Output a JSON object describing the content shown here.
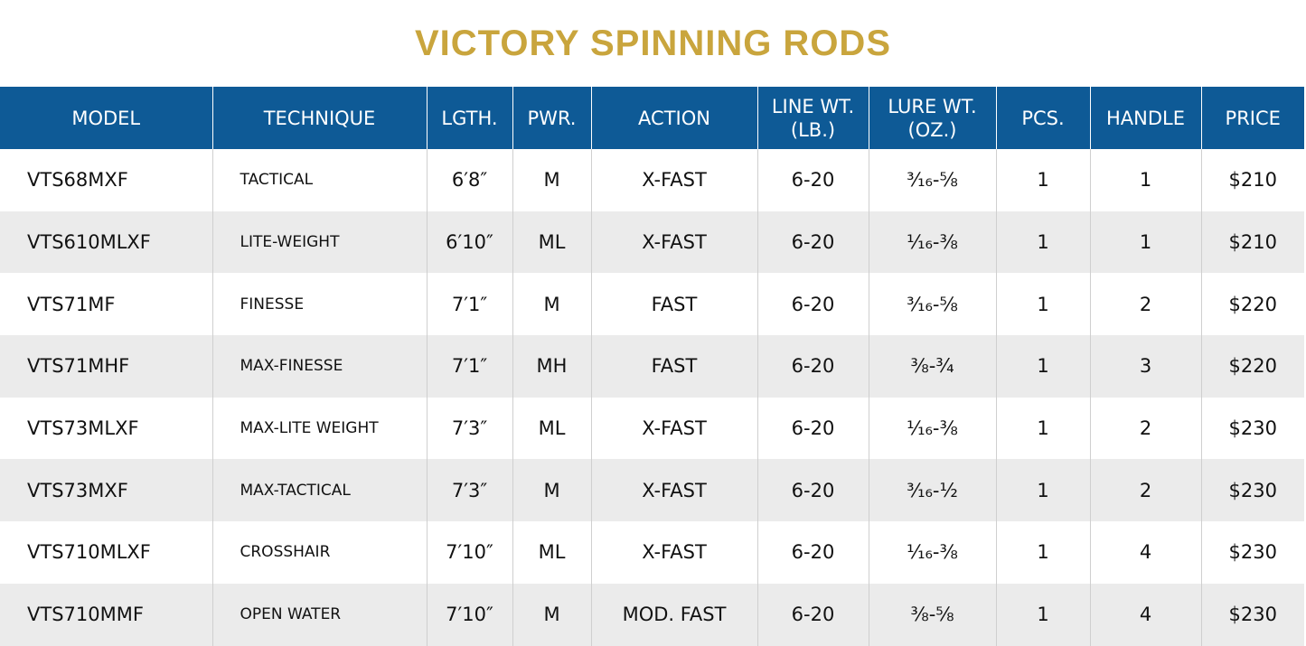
{
  "header": {
    "title": "VICTORY SPINNING RODS"
  },
  "table": {
    "columns": [
      "MODEL",
      "TECHNIQUE",
      "LGTH.",
      "PWR.",
      "ACTION",
      "LINE WT. (LB.)",
      "LURE WT. (OZ.)",
      "PCS.",
      "HANDLE",
      "PRICE"
    ],
    "rows": [
      [
        "VTS68MXF",
        "TACTICAL",
        "6′8″",
        "M",
        "X-FAST",
        "6-20",
        "³⁄₁₆-⅝",
        "1",
        "1",
        "$210"
      ],
      [
        "VTS610MLXF",
        "LITE-WEIGHT",
        "6′10″",
        "ML",
        "X-FAST",
        "6-20",
        "¹⁄₁₆-⅜",
        "1",
        "1",
        "$210"
      ],
      [
        "VTS71MF",
        "FINESSE",
        "7′1″",
        "M",
        "FAST",
        "6-20",
        "³⁄₁₆-⅝",
        "1",
        "2",
        "$220"
      ],
      [
        "VTS71MHF",
        "MAX-FINESSE",
        "7′1″",
        "MH",
        "FAST",
        "6-20",
        "⅜-¾",
        "1",
        "3",
        "$220"
      ],
      [
        "VTS73MLXF",
        "MAX-LITE WEIGHT",
        "7′3″",
        "ML",
        "X-FAST",
        "6-20",
        "¹⁄₁₆-⅜",
        "1",
        "2",
        "$230"
      ],
      [
        "VTS73MXF",
        "MAX-TACTICAL",
        "7′3″",
        "M",
        "X-FAST",
        "6-20",
        "³⁄₁₆-½",
        "1",
        "2",
        "$230"
      ],
      [
        "VTS710MLXF",
        "CROSSHAIR",
        "7′10″",
        "ML",
        "X-FAST",
        "6-20",
        "¹⁄₁₆-⅜",
        "1",
        "4",
        "$230"
      ],
      [
        "VTS710MMF",
        "OPEN WATER",
        "7′10″",
        "M",
        "MOD. FAST",
        "6-20",
        "⅜-⅝",
        "1",
        "4",
        "$230"
      ]
    ]
  }
}
